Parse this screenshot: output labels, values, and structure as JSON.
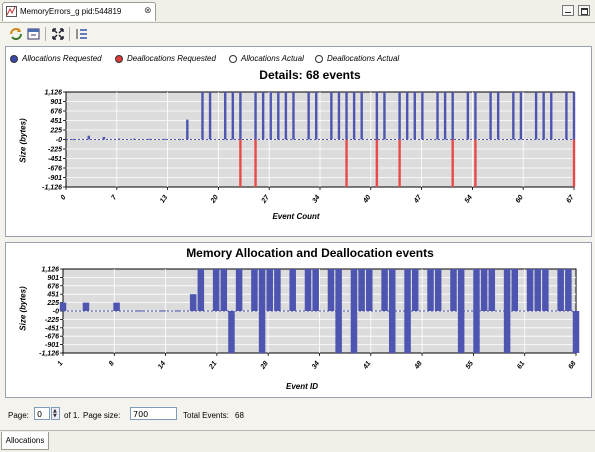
{
  "editor_tab": {
    "title": "MemoryErrors_g pid:544819",
    "close_glyph": "⊗"
  },
  "window_controls": {
    "minimize_icon": "minimize-icon",
    "maximize_icon": "maximize-icon"
  },
  "toolbar": {
    "icons": [
      "refresh-icon",
      "export-icon",
      "zoom-fit-icon",
      "list-icon"
    ]
  },
  "legend": {
    "items": [
      {
        "label": "Allocations Requested",
        "color": "#3b4aa8",
        "filled": true
      },
      {
        "label": "Deallocations Requested",
        "color": "#e03a3a",
        "filled": true
      },
      {
        "label": "Allocations Actual",
        "color": "#ffffff",
        "filled": false
      },
      {
        "label": "Deallocations Actual",
        "color": "#ffffff",
        "filled": false
      }
    ]
  },
  "colors": {
    "alloc": "#4d55b0",
    "dealloc": "#e84a4a",
    "plot_bg": "#dcdcdc",
    "grid": "#ffffff"
  },
  "chart_data": [
    {
      "type": "bar",
      "title": "Details: 68 events",
      "xlabel": "Event Count",
      "ylabel": "Size (bytes)",
      "ylim": [
        -1126,
        1126
      ],
      "yticks": [
        "1,126",
        "901",
        "676",
        "451",
        "225",
        "-0",
        "-225",
        "-451",
        "-676",
        "-901",
        "-1,126"
      ],
      "xticks": [
        "0",
        "7",
        "13",
        "20",
        "27",
        "34",
        "40",
        "47",
        "54",
        "60",
        "67"
      ],
      "xlim": [
        0,
        67
      ],
      "series": [
        {
          "name": "Allocations Requested",
          "x": [
            1,
            3,
            5,
            7,
            9,
            11,
            13,
            15,
            16,
            18,
            19,
            21,
            22,
            23,
            25,
            26,
            27,
            28,
            29,
            30,
            32,
            33,
            35,
            36,
            37,
            38,
            39,
            41,
            42,
            44,
            45,
            46,
            47,
            49,
            50,
            51,
            53,
            54,
            56,
            57,
            59,
            60,
            62,
            63,
            64,
            66,
            67
          ],
          "values": [
            10,
            90,
            60,
            20,
            20,
            15,
            15,
            10,
            470,
            1126,
            1126,
            1126,
            1126,
            1126,
            1126,
            1126,
            1126,
            1126,
            1126,
            1126,
            1126,
            1126,
            1126,
            1126,
            1126,
            1126,
            1126,
            1126,
            1126,
            1126,
            1126,
            1126,
            1126,
            1126,
            1126,
            1126,
            1126,
            1126,
            1126,
            1126,
            1126,
            1126,
            1126,
            1126,
            1126,
            1126,
            1126
          ]
        },
        {
          "name": "Deallocations Requested",
          "x": [
            23,
            25,
            37,
            41,
            44,
            51,
            54,
            67
          ],
          "values": [
            -1126,
            -1126,
            -1126,
            -1126,
            -1126,
            -1126,
            -1126,
            -1126
          ]
        }
      ]
    },
    {
      "type": "bar",
      "title": "Memory Allocation and Deallocation events",
      "xlabel": "Event ID",
      "ylabel": "Size (bytes)",
      "ylim": [
        -1126,
        1126
      ],
      "yticks": [
        "1,126",
        "901",
        "676",
        "451",
        "225",
        "-0",
        "-225",
        "-451",
        "-676",
        "-901",
        "-1,126"
      ],
      "xticks": [
        "1",
        "8",
        "14",
        "21",
        "28",
        "34",
        "41",
        "48",
        "55",
        "61",
        "68"
      ],
      "xlim": [
        1,
        68
      ],
      "series": [
        {
          "name": "Allocations Actual",
          "x": [
            1,
            4,
            8,
            11,
            14,
            16,
            18,
            19,
            21,
            22,
            24,
            26,
            27,
            28,
            29,
            31,
            33,
            34,
            36,
            37,
            39,
            40,
            41,
            43,
            44,
            46,
            47,
            49,
            50,
            52,
            53,
            55,
            56,
            57,
            59,
            60,
            62,
            63,
            64,
            66,
            67
          ],
          "values": [
            225,
            225,
            225,
            15,
            15,
            15,
            451,
            1126,
            1126,
            1126,
            1126,
            1126,
            1126,
            1126,
            1126,
            1126,
            1126,
            1126,
            1126,
            1126,
            1126,
            1126,
            1126,
            1126,
            1126,
            1126,
            1126,
            1126,
            1126,
            1126,
            1126,
            1126,
            1126,
            1126,
            1126,
            1126,
            1126,
            1126,
            1126,
            1126,
            1126
          ]
        },
        {
          "name": "Deallocations Actual",
          "x": [
            23,
            27,
            37,
            39,
            44,
            46,
            53,
            55,
            59,
            68
          ],
          "values": [
            -1126,
            -1126,
            -1126,
            -1126,
            -1126,
            -1126,
            -1126,
            -1126,
            -1126,
            -1126
          ]
        }
      ]
    }
  ],
  "footer": {
    "page_label": "Page:",
    "page_value": "0",
    "page_of": "of 1.",
    "page_size_label": "Page size:",
    "page_size_value": "700",
    "total_label": "Total Events:",
    "total_value": "68"
  },
  "bottom_tab": {
    "label": "Allocations"
  }
}
